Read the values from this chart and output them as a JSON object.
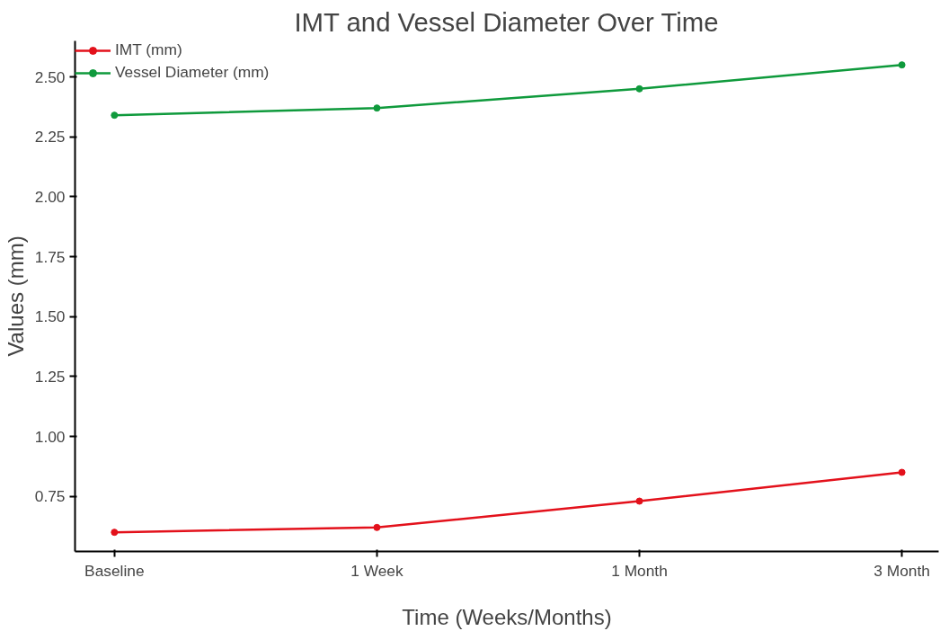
{
  "chart_data": {
    "type": "line",
    "title": "IMT and Vessel Diameter Over Time",
    "xlabel": "Time (Weeks/Months)",
    "ylabel": "Values (mm)",
    "categories": [
      "Baseline",
      "1 Week",
      "1 Month",
      "3 Month"
    ],
    "series": [
      {
        "name": "IMT (mm)",
        "color": "#e3111b",
        "values": [
          0.6,
          0.62,
          0.73,
          0.85
        ]
      },
      {
        "name": "Vessel Diameter (mm)",
        "color": "#0f9a3c",
        "values": [
          2.34,
          2.37,
          2.45,
          2.55
        ]
      }
    ],
    "ylim": [
      0.52,
      2.65
    ],
    "yticks": [
      {
        "value": 0.75,
        "label": "0.75"
      },
      {
        "value": 1.0,
        "label": "1.00"
      },
      {
        "value": 1.25,
        "label": "1.25"
      },
      {
        "value": 1.5,
        "label": "1.50"
      },
      {
        "value": 1.75,
        "label": "1.75"
      },
      {
        "value": 2.0,
        "label": "2.00"
      },
      {
        "value": 2.25,
        "label": "2.25"
      },
      {
        "value": 2.5,
        "label": "2.50"
      }
    ],
    "grid": false,
    "legend": "top left",
    "marker": "circle",
    "line_style": "solid"
  }
}
